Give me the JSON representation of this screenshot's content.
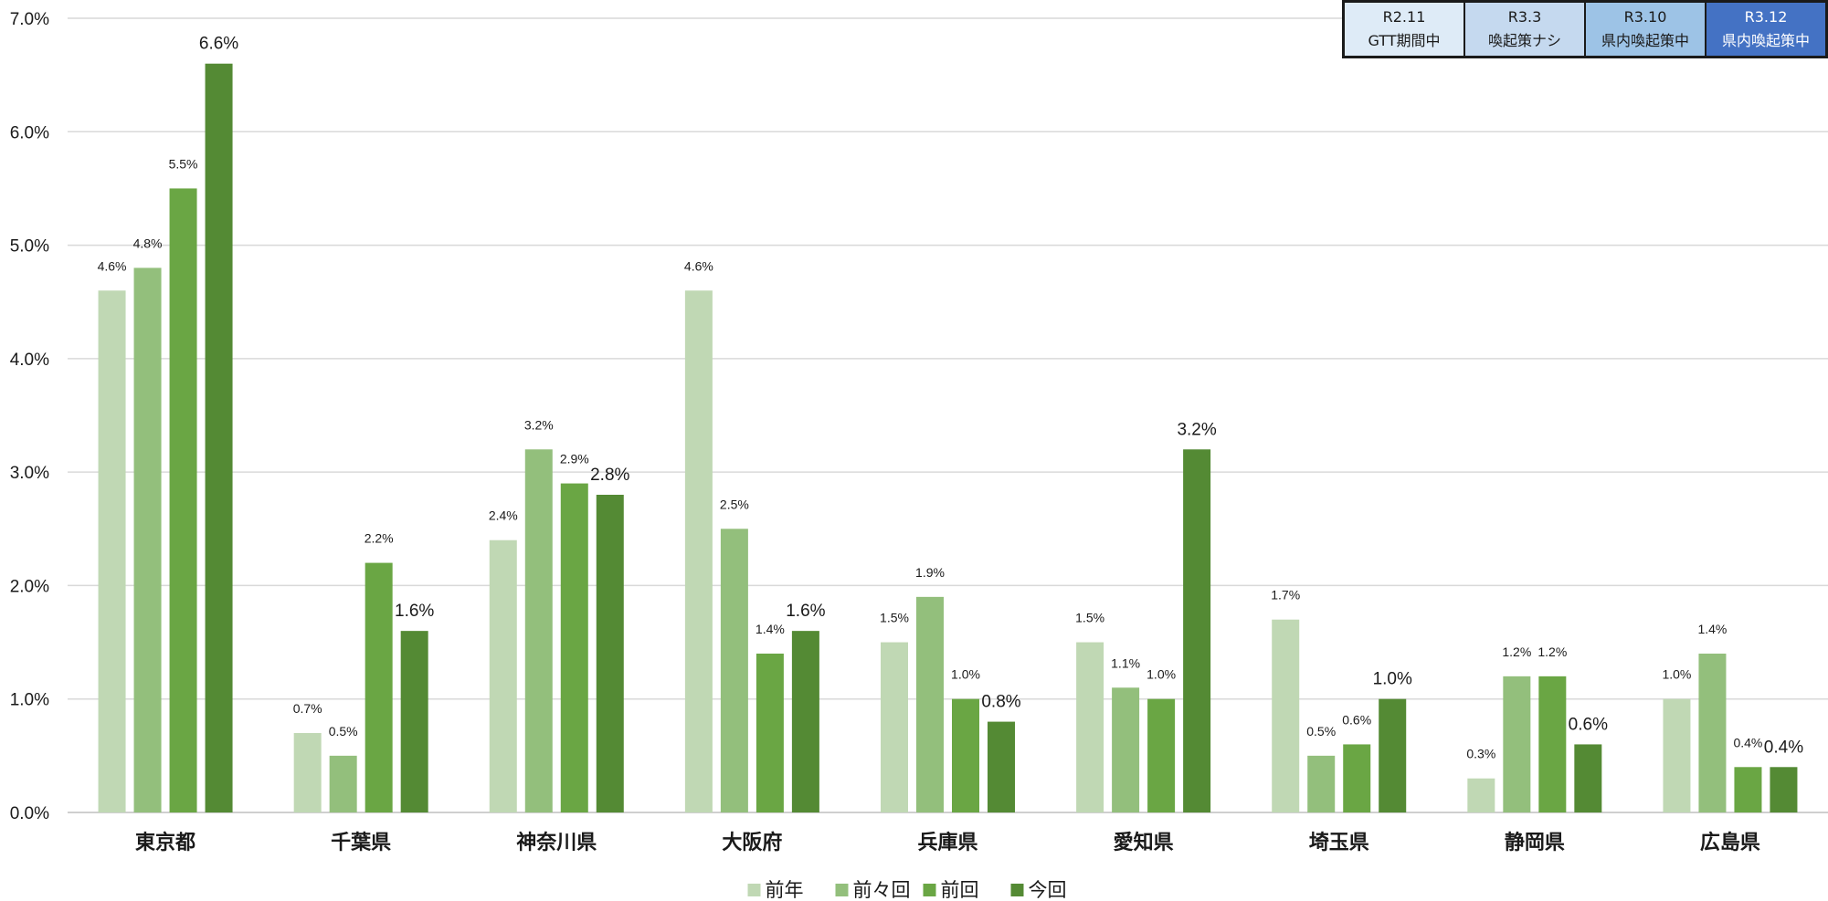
{
  "chart_data": {
    "type": "bar",
    "categories": [
      "東京都",
      "千葉県",
      "神奈川県",
      "大阪府",
      "兵庫県",
      "愛知県",
      "埼玉県",
      "静岡県",
      "広島県"
    ],
    "series": [
      {
        "name": "前年",
        "color": "#c0d8b4",
        "values": [
          4.6,
          0.7,
          2.4,
          4.6,
          1.5,
          1.5,
          1.7,
          0.3,
          1.0
        ],
        "labels": [
          "4.6%",
          "0.7%",
          "2.4%",
          "4.6%",
          "1.5%",
          "1.5%",
          "1.7%",
          "0.3%",
          "1.0%"
        ]
      },
      {
        "name": "前々回",
        "color": "#93bf7c",
        "values": [
          4.8,
          0.5,
          3.2,
          2.5,
          1.9,
          1.1,
          0.5,
          1.2,
          1.4
        ],
        "labels": [
          "4.8%",
          "0.5%",
          "3.2%",
          "2.5%",
          "1.9%",
          "1.1%",
          "0.5%",
          "1.2%",
          "1.4%"
        ]
      },
      {
        "name": "前回",
        "color": "#6aa644",
        "values": [
          5.5,
          2.2,
          2.9,
          1.4,
          1.0,
          1.0,
          0.6,
          1.2,
          0.4
        ],
        "labels": [
          "5.5%",
          "2.2%",
          "2.9%",
          "1.4%",
          "1.0%",
          "1.0%",
          "0.6%",
          "1.2%",
          "0.4%"
        ]
      },
      {
        "name": "今回",
        "color": "#548a34",
        "values": [
          6.6,
          1.6,
          2.8,
          1.6,
          0.8,
          3.2,
          1.0,
          0.6,
          0.4
        ],
        "labels": [
          "6.6%",
          "1.6%",
          "2.8%",
          "1.6%",
          "0.8%",
          "3.2%",
          "1.0%",
          "0.6%",
          "0.4%"
        ]
      }
    ],
    "ylim": [
      0,
      7
    ],
    "yticks": [
      "0.0%",
      "1.0%",
      "2.0%",
      "3.0%",
      "4.0%",
      "5.0%",
      "6.0%",
      "7.0%"
    ],
    "grid": true,
    "legend_position": "bottom-center"
  },
  "period_table": {
    "columns": [
      {
        "line1": "R2.11",
        "line2": "GTT期間中",
        "bg": "#deebf7",
        "text": "#1a1a1a"
      },
      {
        "line1": "R3.3",
        "line2": "喚起策ナシ",
        "bg": "#c5d9ef",
        "text": "#1a1a1a"
      },
      {
        "line1": "R3.10",
        "line2": "県内喚起策中",
        "bg": "#9dc3e6",
        "text": "#1a1a1a"
      },
      {
        "line1": "R3.12",
        "line2": "県内喚起策中",
        "bg": "#4472c4",
        "text": "#ffffff"
      }
    ]
  }
}
